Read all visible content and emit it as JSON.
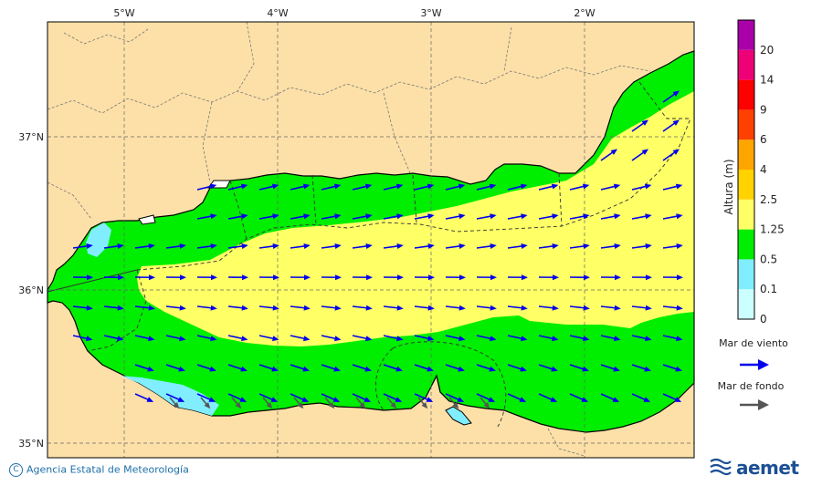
{
  "map": {
    "longitude_ticks": [
      "5°W",
      "4°W",
      "3°W",
      "2°W"
    ],
    "latitude_ticks": [
      "37°N",
      "36°N",
      "35°N"
    ]
  },
  "colorbar": {
    "title": "Altura (m)",
    "levels": [
      "0",
      "0.1",
      "0.5",
      "1.25",
      "2.5",
      "4",
      "6",
      "9",
      "14",
      "20"
    ],
    "colors": [
      "#ccffff",
      "#80eeff",
      "#00ee00",
      "#ffff66",
      "#ffd200",
      "#ffa500",
      "#ff4000",
      "#ff0000",
      "#ee0077",
      "#aa00aa"
    ]
  },
  "legend": {
    "wind_sea": "Mar de viento",
    "swell": "Mar de fondo",
    "wind_sea_color": "#0000ee",
    "swell_color": "#555555"
  },
  "footer": {
    "copyright_symbol": "C",
    "agency": "Agencia Estatal de Meteorología",
    "logo": "aemet"
  },
  "palette": {
    "land": "#fde0a8",
    "high_wave": "#ffff66",
    "medium_wave": "#00ee00",
    "low_wave": "#80eeff"
  }
}
